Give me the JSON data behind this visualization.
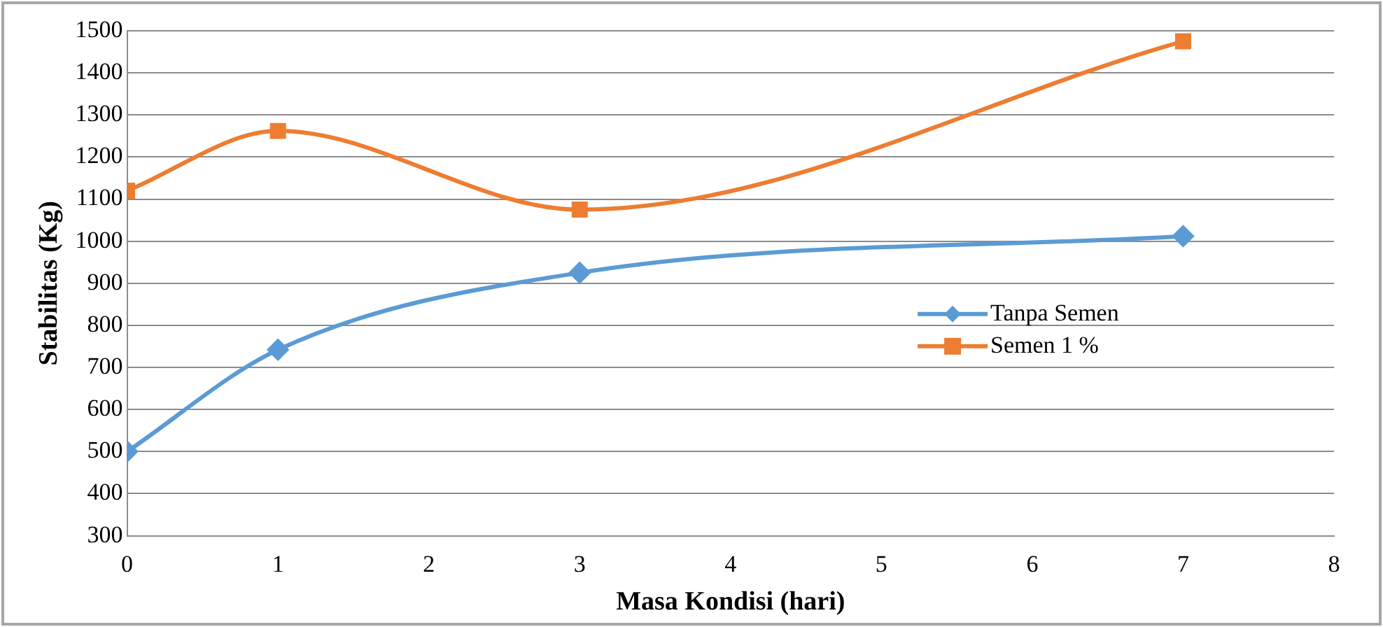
{
  "chart_data": {
    "type": "line",
    "xlabel": "Masa Kondisi (hari)",
    "ylabel": "Stabilitas (Kg)",
    "xlim": [
      0,
      8
    ],
    "xticks": [
      0,
      1,
      2,
      3,
      4,
      5,
      6,
      7,
      8
    ],
    "ylim": [
      300,
      1500
    ],
    "yticks": [
      300,
      400,
      500,
      600,
      700,
      800,
      900,
      1000,
      1100,
      1200,
      1300,
      1400,
      1500
    ],
    "grid": "y",
    "legend": "right",
    "series": [
      {
        "name": "Tanpa Semen",
        "color": "#5b9bd5",
        "marker": "diamond",
        "x": [
          0,
          1,
          3,
          7
        ],
        "values": [
          500,
          742,
          925,
          1012
        ]
      },
      {
        "name": "Semen 1 %",
        "color": "#ed7d31",
        "marker": "square",
        "x": [
          0,
          1,
          3,
          7
        ],
        "values": [
          1120,
          1262,
          1075,
          1475
        ]
      }
    ]
  }
}
